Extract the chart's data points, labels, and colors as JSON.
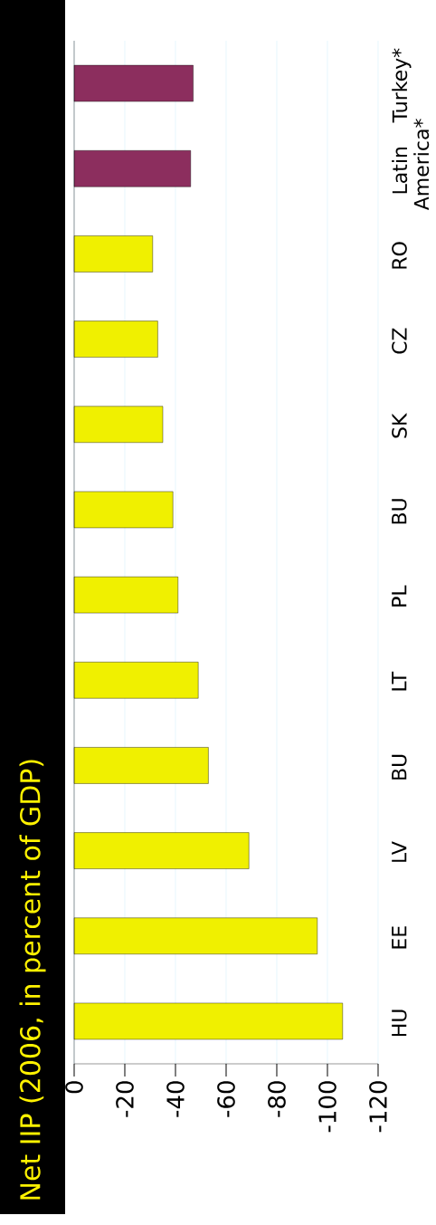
{
  "chart_data": {
    "type": "bar",
    "orientation": "horizontal",
    "title": "Net IIP (2006, in percent of GDP)",
    "categories": [
      "Turkey*",
      "Latin America*",
      "RO",
      "CZ",
      "SK",
      "BU",
      "PL",
      "LT",
      "BU",
      "LV",
      "EE",
      "HU"
    ],
    "values": [
      -47,
      -46,
      -31,
      -33,
      -35,
      -39,
      -41,
      -49,
      -53,
      -69,
      -96,
      -106
    ],
    "colors": [
      "#8c2e5e",
      "#8c2e5e",
      "#f0f000",
      "#f0f000",
      "#f0f000",
      "#f0f000",
      "#f0f000",
      "#f0f000",
      "#f0f000",
      "#f0f000",
      "#f0f000",
      "#f0f000"
    ],
    "xlim": [
      0,
      -120
    ],
    "xticks": [
      0,
      -20,
      -40,
      -60,
      -80,
      -100,
      -120
    ],
    "grid": "x"
  }
}
